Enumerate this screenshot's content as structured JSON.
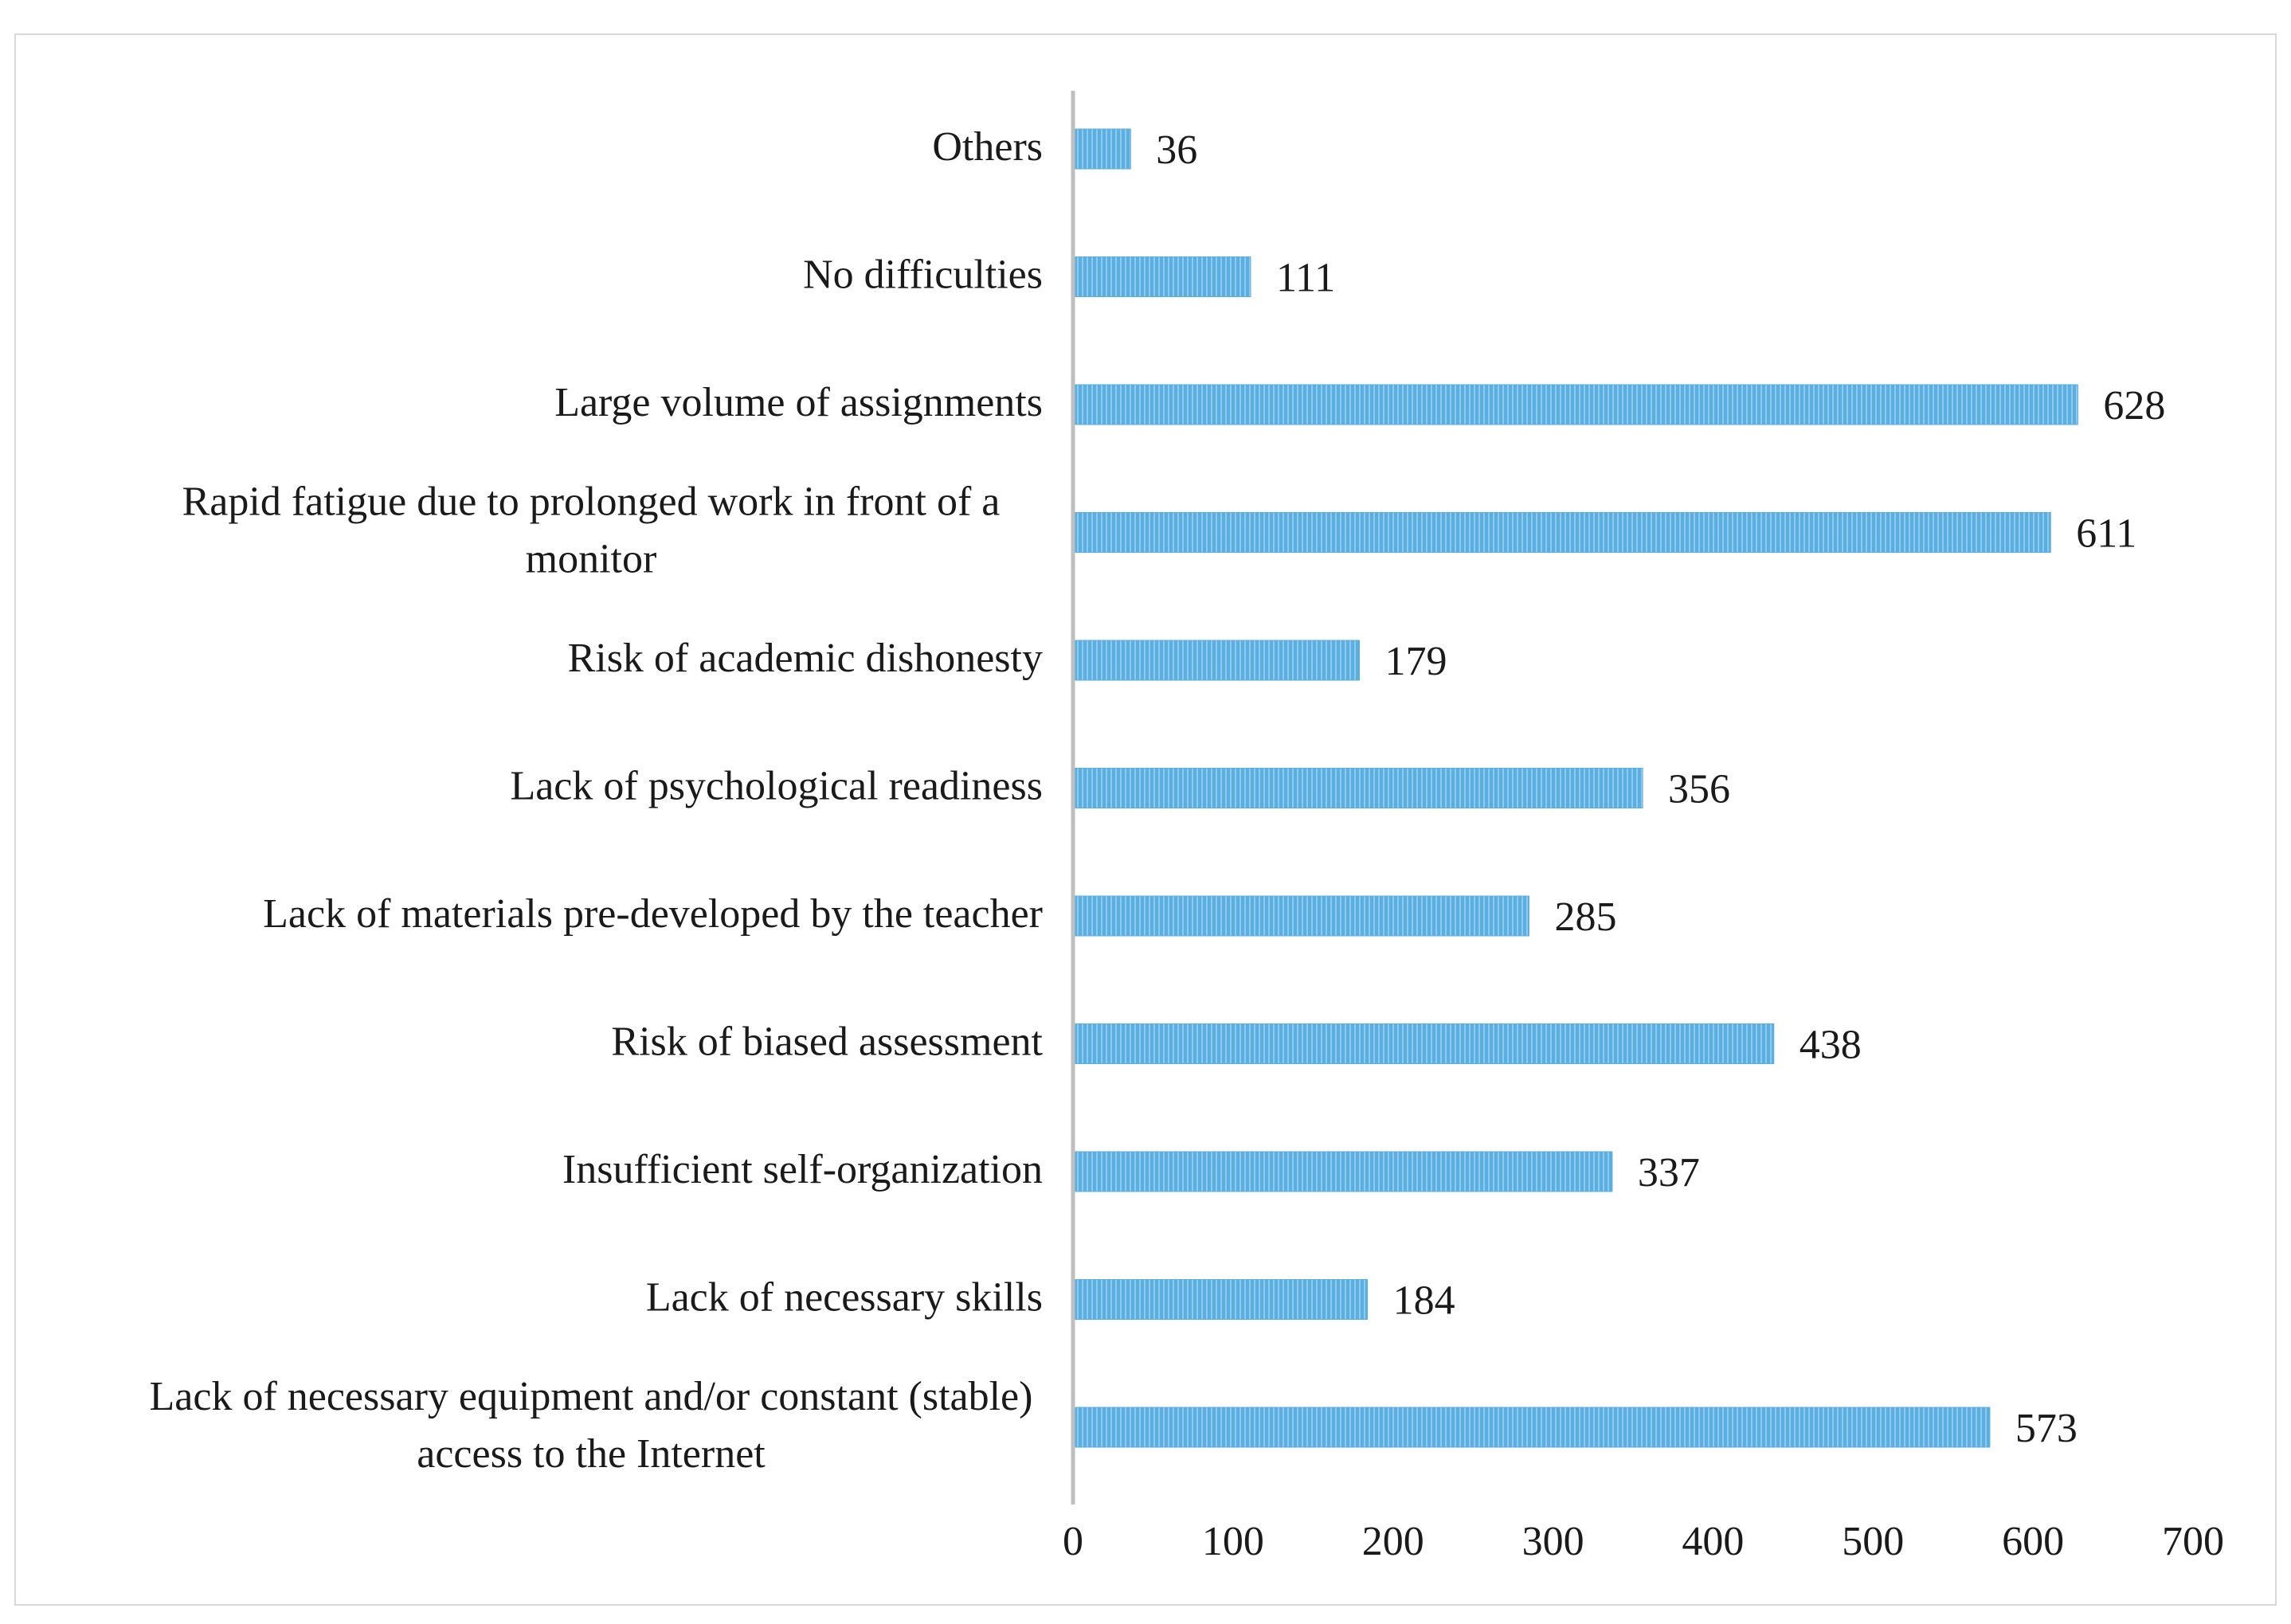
{
  "chart_data": {
    "type": "bar",
    "orientation": "horizontal",
    "categories": [
      "Others",
      "No difficulties",
      "Large volume of assignments",
      [
        "Rapid fatigue due to prolonged work in front of a",
        "monitor"
      ],
      "Risk of academic dishonesty",
      "Lack of psychological readiness",
      "Lack of materials pre-developed by the teacher",
      "Risk of biased assessment",
      "Insufficient self-organization",
      "Lack of necessary skills",
      [
        "Lack of necessary equipment and/or constant (stable)",
        "access to the Internet"
      ]
    ],
    "values": [
      36,
      111,
      628,
      611,
      179,
      356,
      285,
      438,
      337,
      184,
      573
    ],
    "data_labels": [
      "36",
      "111",
      "628",
      "611",
      "179",
      "356",
      "285",
      "438",
      "337",
      "184",
      "573"
    ],
    "xlim": [
      0,
      700
    ],
    "xticks": [
      "0",
      "100",
      "200",
      "300",
      "400",
      "500",
      "600",
      "700"
    ],
    "grid": false,
    "legend": "none",
    "title": "",
    "xlabel": "",
    "ylabel": "",
    "colors": {
      "bar": "#5aaee0",
      "bar_stripe": "#8ccaf0",
      "axis": "#bfbfbf",
      "text": "#1a1a1a"
    }
  }
}
